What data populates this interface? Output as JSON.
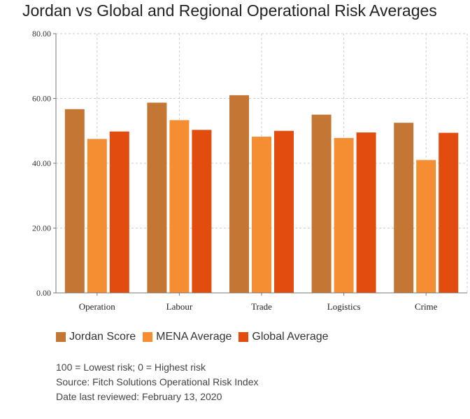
{
  "chart_data": {
    "type": "bar",
    "title": "Jordan vs Global and Regional Operational Risk Averages",
    "categories": [
      "Operation",
      "Labour",
      "Trade",
      "Logistics",
      "Crime"
    ],
    "series": [
      {
        "name": "Jordan Score",
        "color": "#c47634",
        "values": [
          56.7,
          58.7,
          61.0,
          55.0,
          52.5
        ]
      },
      {
        "name": "MENA Average",
        "color": "#f58d33",
        "values": [
          47.5,
          53.3,
          48.2,
          47.8,
          41.0
        ]
      },
      {
        "name": "Global Average",
        "color": "#e24c0e",
        "values": [
          49.8,
          50.3,
          50.0,
          49.5,
          49.4
        ]
      }
    ],
    "ylim": [
      0,
      80
    ],
    "yticks": [
      "0.00",
      "20.00",
      "40.00",
      "60.00",
      "80.00"
    ],
    "ytick_values": [
      0,
      20,
      40,
      60,
      80
    ],
    "grid": true,
    "legend_position": "bottom-left"
  },
  "notes": [
    "100 = Lowest risk; 0 = Highest risk",
    "Source: Fitch Solutions Operational Risk Index",
    "Date last reviewed: February 13, 2020"
  ]
}
